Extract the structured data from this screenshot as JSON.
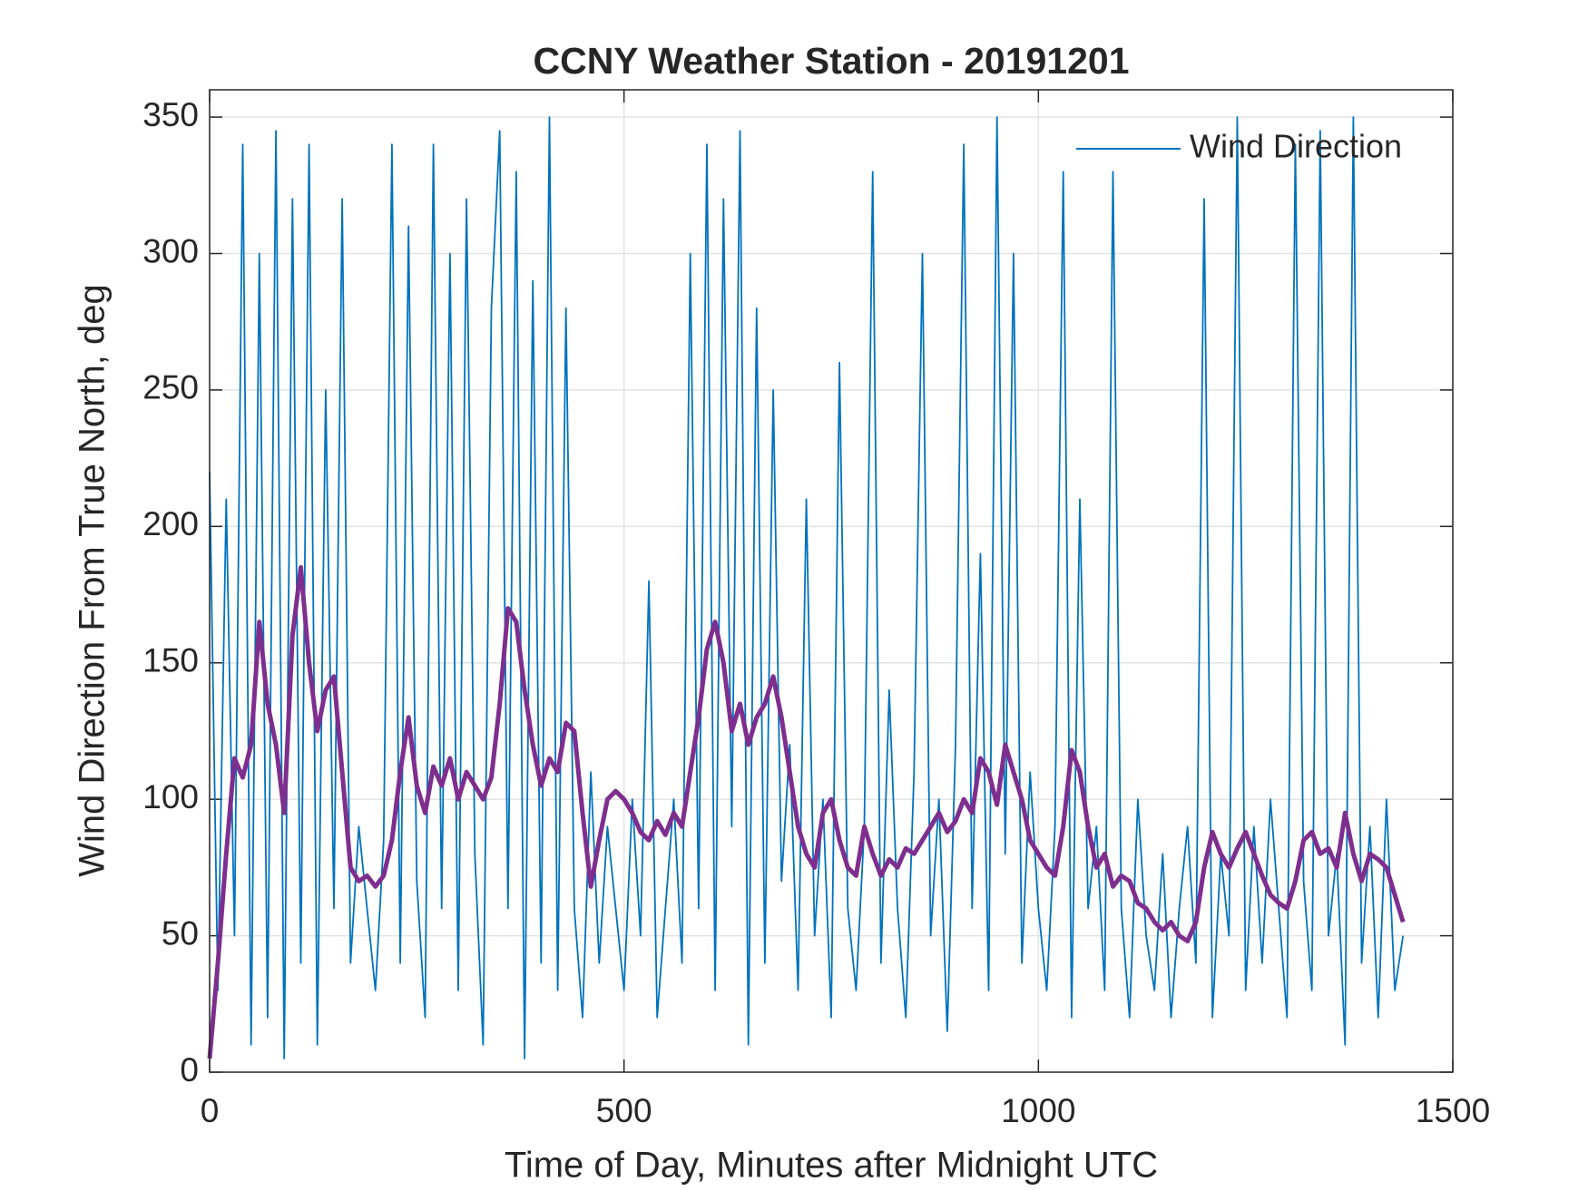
{
  "chart_data": {
    "type": "line",
    "title": "CCNY Weather Station - 20191201",
    "xlabel": "Time of Day, Minutes after Midnight UTC",
    "ylabel": "Wind Direction From True North, deg",
    "x": [
      0,
      10,
      20,
      30,
      40,
      50,
      60,
      70,
      80,
      90,
      100,
      110,
      120,
      130,
      140,
      150,
      160,
      170,
      180,
      190,
      200,
      210,
      220,
      230,
      240,
      250,
      260,
      270,
      280,
      290,
      300,
      310,
      320,
      330,
      340,
      350,
      360,
      370,
      380,
      390,
      400,
      410,
      420,
      430,
      440,
      450,
      460,
      470,
      480,
      490,
      500,
      510,
      520,
      530,
      540,
      550,
      560,
      570,
      580,
      590,
      600,
      610,
      620,
      630,
      640,
      650,
      660,
      670,
      680,
      690,
      700,
      710,
      720,
      730,
      740,
      750,
      760,
      770,
      780,
      790,
      800,
      810,
      820,
      830,
      840,
      850,
      860,
      870,
      880,
      890,
      900,
      910,
      920,
      930,
      940,
      950,
      960,
      970,
      980,
      990,
      1000,
      1010,
      1020,
      1030,
      1040,
      1050,
      1060,
      1070,
      1080,
      1090,
      1100,
      1110,
      1120,
      1130,
      1140,
      1150,
      1160,
      1170,
      1180,
      1190,
      1200,
      1210,
      1220,
      1230,
      1240,
      1250,
      1260,
      1270,
      1280,
      1290,
      1300,
      1310,
      1320,
      1330,
      1340,
      1350,
      1360,
      1370,
      1380,
      1390,
      1400,
      1410,
      1420,
      1430,
      1440
    ],
    "series": [
      {
        "name": "Wind Direction",
        "color": "#0072bd",
        "values": [
          220,
          30,
          210,
          50,
          340,
          10,
          300,
          20,
          345,
          5,
          320,
          40,
          340,
          10,
          250,
          60,
          320,
          40,
          90,
          60,
          30,
          85,
          340,
          40,
          310,
          70,
          20,
          340,
          60,
          300,
          30,
          320,
          80,
          10,
          280,
          345,
          60,
          330,
          5,
          290,
          40,
          350,
          30,
          280,
          60,
          20,
          110,
          40,
          90,
          60,
          30,
          100,
          50,
          180,
          20,
          60,
          100,
          40,
          300,
          60,
          340,
          30,
          320,
          90,
          345,
          10,
          280,
          40,
          250,
          70,
          120,
          30,
          210,
          50,
          100,
          20,
          260,
          60,
          30,
          90,
          330,
          40,
          140,
          60,
          20,
          110,
          300,
          50,
          100,
          15,
          120,
          340,
          60,
          190,
          30,
          350,
          80,
          300,
          40,
          110,
          60,
          30,
          90,
          330,
          20,
          210,
          60,
          90,
          30,
          330,
          60,
          20,
          100,
          50,
          30,
          80,
          20,
          60,
          90,
          40,
          320,
          20,
          80,
          50,
          350,
          30,
          90,
          40,
          100,
          60,
          20,
          340,
          70,
          30,
          345,
          50,
          80,
          10,
          350,
          40,
          90,
          20,
          100,
          30,
          50
        ]
      },
      {
        "color": "#7e2f8e",
        "values": [
          5,
          40,
          80,
          115,
          108,
          120,
          165,
          135,
          120,
          95,
          160,
          185,
          150,
          125,
          140,
          145,
          110,
          75,
          70,
          72,
          68,
          72,
          85,
          110,
          130,
          105,
          95,
          112,
          105,
          115,
          100,
          110,
          105,
          100,
          108,
          135,
          170,
          165,
          140,
          120,
          105,
          115,
          110,
          128,
          125,
          95,
          68,
          85,
          100,
          103,
          100,
          95,
          88,
          85,
          92,
          87,
          95,
          90,
          110,
          130,
          155,
          165,
          150,
          125,
          135,
          120,
          130,
          135,
          145,
          130,
          110,
          90,
          80,
          75,
          95,
          100,
          85,
          75,
          72,
          90,
          80,
          72,
          78,
          75,
          82,
          80,
          85,
          90,
          95,
          88,
          92,
          100,
          95,
          115,
          110,
          98,
          120,
          110,
          100,
          85,
          80,
          75,
          72,
          90,
          118,
          110,
          90,
          75,
          80,
          68,
          72,
          70,
          62,
          60,
          55,
          52,
          55,
          50,
          48,
          55,
          75,
          88,
          80,
          75,
          82,
          88,
          80,
          72,
          65,
          62,
          60,
          70,
          85,
          88,
          80,
          82,
          75,
          95,
          80,
          70,
          80,
          78,
          75,
          65,
          55
        ]
      }
    ],
    "xlim": [
      0,
      1500
    ],
    "xticks": [
      0,
      500,
      1000,
      1500
    ],
    "ylim": [
      0,
      360
    ],
    "yticks": [
      0,
      50,
      100,
      150,
      200,
      250,
      300,
      350
    ],
    "grid": true,
    "legend": "upper right"
  }
}
